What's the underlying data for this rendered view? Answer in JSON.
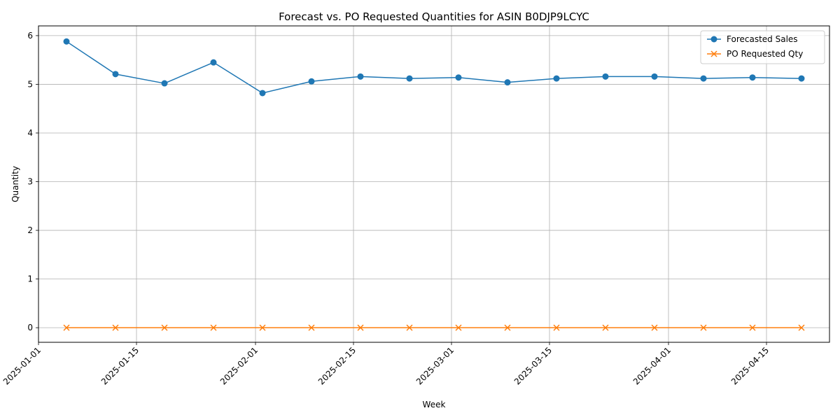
{
  "chart_data": {
    "type": "line",
    "title": "Forecast vs. PO Requested Quantities for ASIN B0DJP9LCYC",
    "xlabel": "Week",
    "ylabel": "Quantity",
    "x": [
      "2025-01-05",
      "2025-01-12",
      "2025-01-19",
      "2025-01-26",
      "2025-02-02",
      "2025-02-09",
      "2025-02-16",
      "2025-02-23",
      "2025-03-02",
      "2025-03-09",
      "2025-03-16",
      "2025-03-23",
      "2025-03-30",
      "2025-04-06",
      "2025-04-13",
      "2025-04-20"
    ],
    "xlim": [
      "2025-01-01",
      "2025-04-24"
    ],
    "ylim": [
      -0.3,
      6.2
    ],
    "x_ticks": [
      "2025-01-01",
      "2025-01-15",
      "2025-02-01",
      "2025-02-15",
      "2025-03-01",
      "2025-03-15",
      "2025-04-01",
      "2025-04-15"
    ],
    "y_ticks": [
      "0",
      "1",
      "2",
      "3",
      "4",
      "5",
      "6"
    ],
    "grid": true,
    "legend_position": "top-right",
    "series": [
      {
        "name": "Forecasted Sales",
        "color": "#1f77b4",
        "marker": "circle",
        "values": [
          5.88,
          5.21,
          5.02,
          5.45,
          4.82,
          5.06,
          5.16,
          5.12,
          5.14,
          5.04,
          5.12,
          5.16,
          5.16,
          5.12,
          5.14,
          5.12
        ]
      },
      {
        "name": "PO Requested Qty",
        "color": "#ff7f0e",
        "marker": "x",
        "values": [
          0,
          0,
          0,
          0,
          0,
          0,
          0,
          0,
          0,
          0,
          0,
          0,
          0,
          0,
          0,
          0
        ]
      }
    ]
  }
}
